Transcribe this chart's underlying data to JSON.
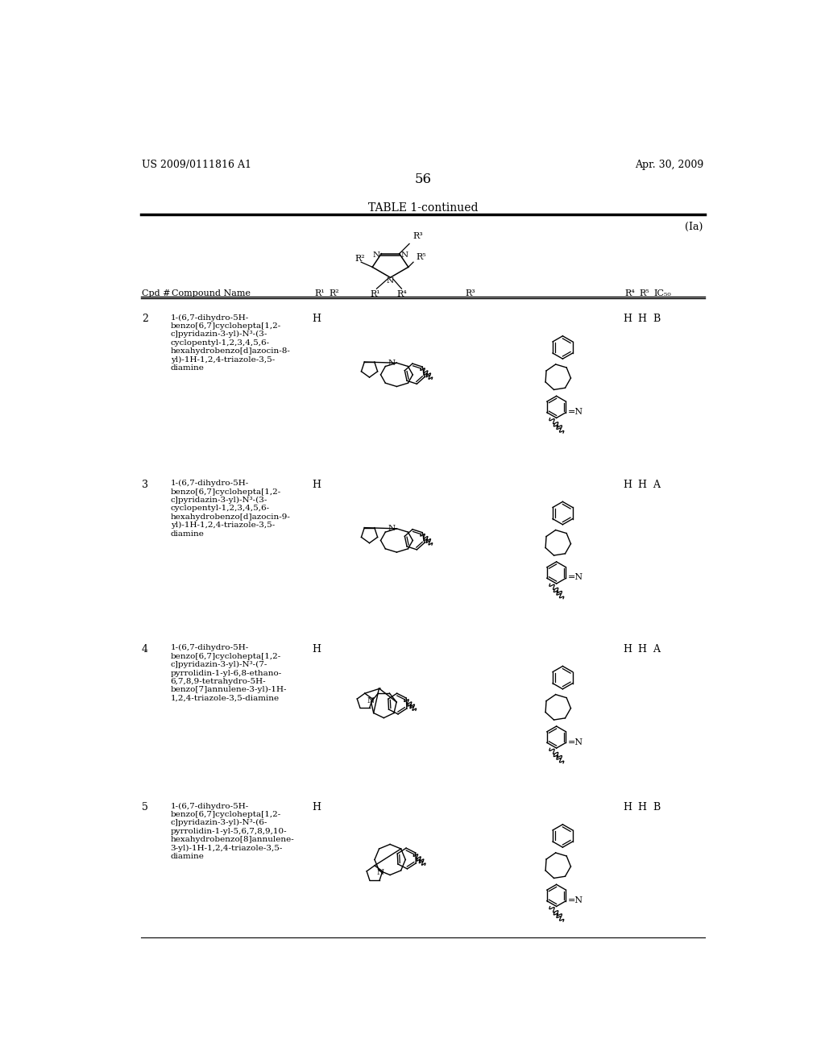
{
  "title_left": "US 2009/0111816 A1",
  "title_right": "Apr. 30, 2009",
  "page_number": "56",
  "table_title": "TABLE 1-continued",
  "label_ia": "(Ia)",
  "bg_color": "#ffffff",
  "rows": [
    {
      "cpd": "2",
      "name": "1-(6,7-dihydro-5H-\nbenzo[6,7]cyclohepta[1,2-\nc]pyridazin-3-yl)-N³-(3-\ncyclopentyl-1,2,3,4,5,6-\nhexahydrobenzo[d]azocin-8-\nyl)-1H-1,2,4-triazole-3,5-\ndiamine",
      "r1": "H",
      "r4": "H",
      "r5": "H",
      "ic50": "B",
      "r2_type": "cyclopentyl_azocin_8",
      "r3_type": "benzo_cyclohepta_pyridazin"
    },
    {
      "cpd": "3",
      "name": "1-(6,7-dihydro-5H-\nbenzo[6,7]cyclohepta[1,2-\nc]pyridazin-3-yl)-N³-(3-\ncyclopentyl-1,2,3,4,5,6-\nhexahydrobenzo[d]azocin-9-\nyl)-1H-1,2,4-triazole-3,5-\ndiamine",
      "r1": "H",
      "r4": "H",
      "r5": "H",
      "ic50": "A",
      "r2_type": "cyclopentyl_azocin_9",
      "r3_type": "benzo_cyclohepta_pyridazin"
    },
    {
      "cpd": "4",
      "name": "1-(6,7-dihydro-5H-\nbenzo[6,7]cyclohepta[1,2-\nc]pyridazin-3-yl)-N³-(7-\npyrrolidin-1-yl-6,8-ethano-\n6,7,8,9-tetrahydro-5H-\nbenzo[7]annulene-3-yl)-1H-\n1,2,4-triazole-3,5-diamine",
      "r1": "H",
      "r4": "H",
      "r5": "H",
      "ic50": "A",
      "r2_type": "pyrrolidinyl_ethano_annulene7",
      "r3_type": "benzo_cyclohepta_pyridazin"
    },
    {
      "cpd": "5",
      "name": "1-(6,7-dihydro-5H-\nbenzo[6,7]cyclohepta[1,2-\nc]pyridazin-3-yl)-N³-(6-\npyrrolidin-1-yl-5,6,7,8,9,10-\nhexahydrobenzo[8]annulene-\n3-yl)-1H-1,2,4-triazole-3,5-\ndiamine",
      "r1": "H",
      "r4": "H",
      "r5": "H",
      "ic50": "B",
      "r2_type": "pyrrolidinyl_annulene8",
      "r3_type": "benzo_cyclohepta_pyridazin"
    }
  ]
}
